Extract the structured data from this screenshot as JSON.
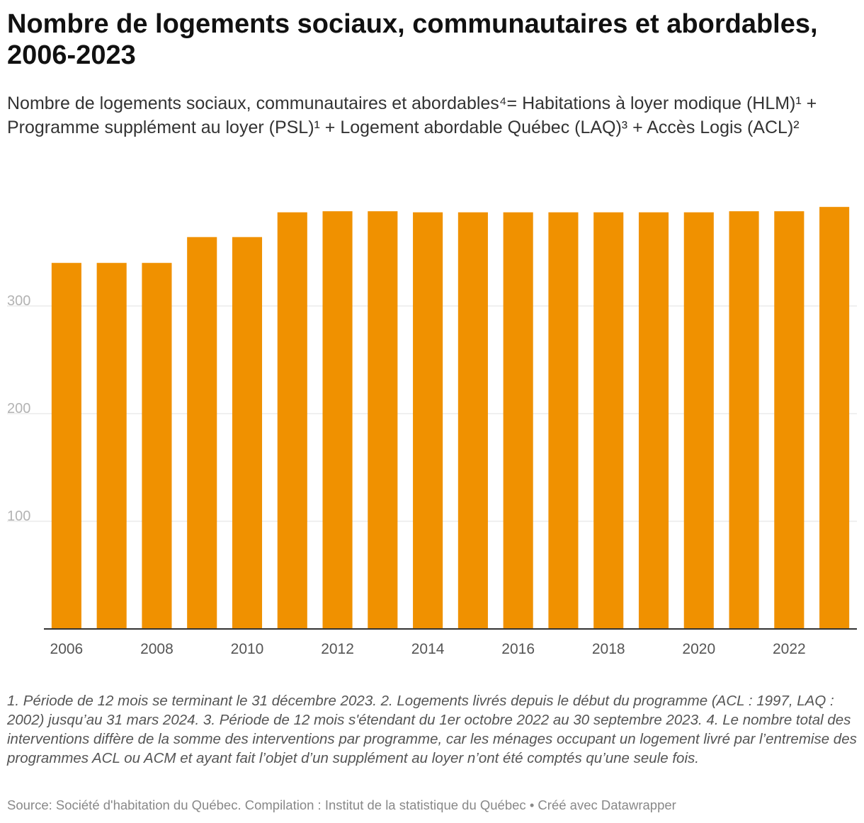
{
  "header": {
    "title": "Nombre de logements sociaux, communautaires et abordables, 2006-2023",
    "subtitle": "Nombre de logements sociaux, communautaires et abordables⁴= Habitations à loyer modique (HLM)¹ + Programme supplément au loyer (PSL)¹ + Logement abordable Québec (LAQ)³ + Accès Logis (ACL)²"
  },
  "footer": {
    "notes": "1. Période de 12 mois se terminant le 31 décembre 2023. 2. Logements livrés depuis le début du programme (ACL : 1997, LAQ : 2002) jusqu’au 31 mars 2024. 3. Période de 12 mois s'étendant du 1er octobre 2022 au 30 septembre 2023. 4. Le nombre total des interventions diffère de la somme des interventions par programme, car les ménages occupant un logement livré par l’entremise des programmes ACL ou ACM et ayant fait l’objet d’un supplément au loyer n’ont été comptés qu’une seule fois.",
    "source": "Source: Société d'habitation du Québec. Compilation : Institut de la statistique du Québec • Créé avec Datawrapper"
  },
  "chart_data": {
    "type": "bar",
    "categories": [
      "2006",
      "2007",
      "2008",
      "2009",
      "2010",
      "2011",
      "2012",
      "2013",
      "2014",
      "2015",
      "2016",
      "2017",
      "2018",
      "2019",
      "2020",
      "2021",
      "2022",
      "2023"
    ],
    "values": [
      340,
      340,
      340,
      364,
      364,
      387,
      388,
      388,
      387,
      387,
      387,
      387,
      387,
      387,
      387,
      388,
      388,
      392
    ],
    "x_tick_labels": [
      "2006",
      "2008",
      "2010",
      "2012",
      "2014",
      "2016",
      "2018",
      "2020",
      "2022"
    ],
    "y_ticks": [
      100,
      200,
      300
    ],
    "ylim": [
      0,
      400
    ],
    "grid": true,
    "bar_color": "#f09100",
    "title": "",
    "xlabel": "",
    "ylabel": ""
  }
}
